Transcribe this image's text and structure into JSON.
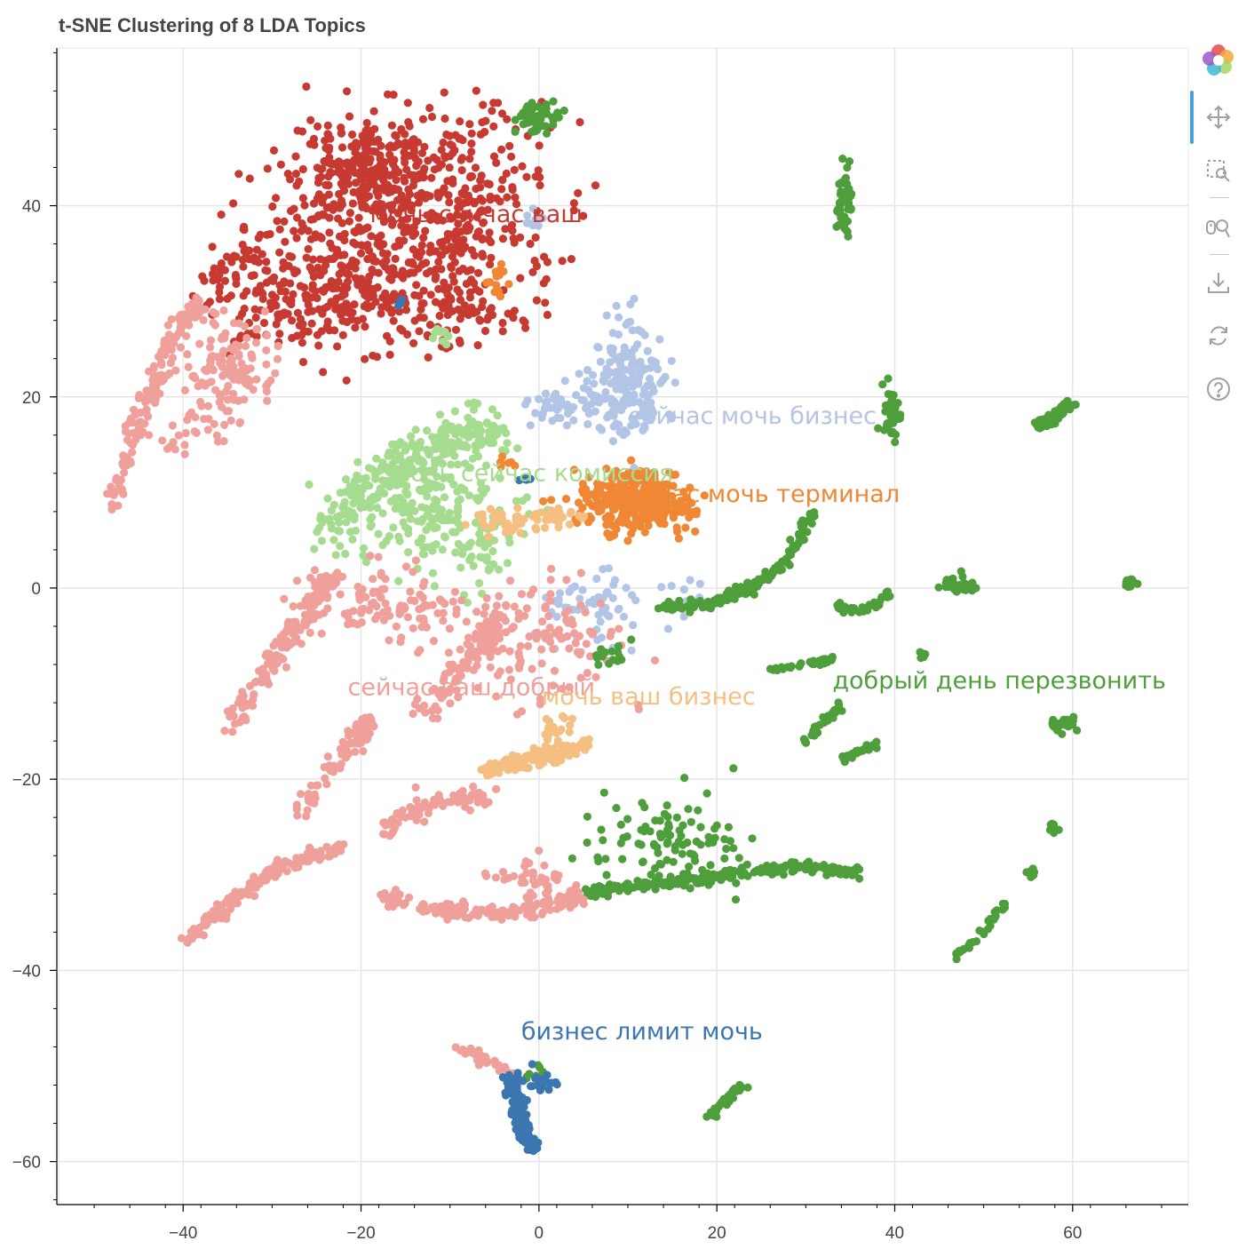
{
  "title": "t-SNE Clustering of 8 LDA Topics",
  "toolbar": {
    "logo": "bokeh-logo-icon",
    "tools": [
      "pan-icon",
      "box-zoom-icon",
      "wheel-zoom-icon",
      "save-icon",
      "reset-icon",
      "help-icon"
    ]
  },
  "chart_data": {
    "type": "scatter",
    "title": "t-SNE Clustering of 8 LDA Topics",
    "xlabel": "",
    "ylabel": "",
    "xlim": [
      -54,
      73
    ],
    "ylim": [
      -64.5,
      56.5
    ],
    "x_ticks": [
      -40,
      -20,
      0,
      20,
      40,
      60
    ],
    "x_tick_labels": [
      "−40",
      "−20",
      "0",
      "20",
      "40",
      "60"
    ],
    "y_ticks": [
      40,
      20,
      0,
      -20,
      -40,
      -60
    ],
    "y_tick_labels": [
      "40",
      "20",
      "0",
      "−20",
      "−40",
      "−60"
    ],
    "grid": true,
    "colors": {
      "topic_red": "#c73a32",
      "topic_pink": "#f0a09b",
      "topic_lightblue": "#b2c5e6",
      "topic_lightgreen": "#a6dc8f",
      "topic_orange": "#ef8734",
      "topic_peach": "#f5bf82",
      "topic_green": "#4f9e3c",
      "topic_blue": "#3b76b1"
    },
    "topics": [
      {
        "label": "мочь сейчас ваш",
        "color": "#c73a32",
        "label_x": -19,
        "label_y": 38.3
      },
      {
        "label": "сейчас мочь бизнес",
        "color": "#b2c5e6",
        "label_x": 10,
        "label_y": 17.2
      },
      {
        "label": "мочь сейчас комиссия",
        "color": "#a6dc8f",
        "label_x": -16.5,
        "label_y": 11.2
      },
      {
        "label": "сейчас мочь терминал",
        "color": "#ef8734",
        "label_x": 8.5,
        "label_y": 9.0
      },
      {
        "label": "сейчас ваш добрый",
        "color": "#f0a09b",
        "label_x": -21.5,
        "label_y": -11.2
      },
      {
        "label": "мочь ваш бизнес",
        "color": "#f5bf82",
        "label_x": 0.3,
        "label_y": -12.2
      },
      {
        "label": "добрый день перезвонить",
        "color": "#4f9e3c",
        "label_x": 33,
        "label_y": -10.5
      },
      {
        "label": "бизнес лимит мочь",
        "color": "#3b76b1",
        "label_x": -2,
        "label_y": -47.2
      }
    ],
    "clusters": [
      {
        "topic": 0,
        "kind": "band",
        "pts": [
          [
            -38.5,
            30.5
          ],
          [
            -32,
            35
          ],
          [
            -24,
            40
          ],
          [
            -16,
            44.5
          ],
          [
            -9,
            47
          ],
          [
            -3,
            49.5
          ]
        ],
        "w": 2.5,
        "n": 130,
        "seed": 11
      },
      {
        "topic": 0,
        "kind": "blob",
        "cx": -14,
        "cy": 38,
        "sx": 7.5,
        "sy": 5.5,
        "n": 520,
        "seed": 12
      },
      {
        "topic": 0,
        "kind": "blob",
        "cx": -27,
        "cy": 31,
        "sx": 5,
        "sy": 3,
        "n": 150,
        "seed": 13
      },
      {
        "topic": 0,
        "kind": "blob",
        "cx": -16,
        "cy": 30,
        "sx": 6,
        "sy": 2.5,
        "n": 120,
        "seed": 14
      },
      {
        "topic": 0,
        "kind": "blob",
        "cx": -20,
        "cy": 45,
        "sx": 3.5,
        "sy": 1.8,
        "n": 120,
        "seed": 15
      },
      {
        "topic": 6,
        "kind": "blob",
        "cx": 0,
        "cy": 49.3,
        "sx": 1.3,
        "sy": 0.8,
        "n": 45,
        "seed": 16
      },
      {
        "topic": 1,
        "kind": "blob",
        "cx": -0.5,
        "cy": 38.3,
        "sx": 0.5,
        "sy": 0.5,
        "n": 10,
        "seed": 17
      },
      {
        "topic": 3,
        "kind": "blob",
        "cx": -4.5,
        "cy": 31.5,
        "sx": 1.0,
        "sy": 1.2,
        "n": 14,
        "seed": 18
      },
      {
        "topic": 7,
        "kind": "blob",
        "cx": -15.5,
        "cy": 30,
        "sx": 0.3,
        "sy": 0.3,
        "n": 6,
        "seed": 19
      },
      {
        "topic": 2,
        "kind": "blob",
        "cx": -11,
        "cy": 26.5,
        "sx": 0.8,
        "sy": 0.5,
        "n": 10,
        "seed": 20
      },
      {
        "topic": 4,
        "kind": "band",
        "pts": [
          [
            -48,
            9
          ],
          [
            -46,
            15
          ],
          [
            -43,
            22
          ],
          [
            -40,
            28
          ],
          [
            -38,
            30
          ]
        ],
        "w": 0.9,
        "n": 160,
        "seed": 21
      },
      {
        "topic": 4,
        "kind": "blob",
        "cx": -35,
        "cy": 23,
        "sx": 2.5,
        "sy": 2.5,
        "n": 130,
        "seed": 22
      },
      {
        "topic": 4,
        "kind": "blob",
        "cx": -39,
        "cy": 16,
        "sx": 2,
        "sy": 1.5,
        "n": 20,
        "seed": 23
      },
      {
        "topic": 1,
        "kind": "blob",
        "cx": 10,
        "cy": 21,
        "sx": 2.2,
        "sy": 3.5,
        "n": 180,
        "seed": 24
      },
      {
        "topic": 1,
        "kind": "blob",
        "cx": 3,
        "cy": 19,
        "sx": 2,
        "sy": 0.9,
        "n": 50,
        "seed": 25
      },
      {
        "topic": 1,
        "kind": "blob",
        "cx": 6.5,
        "cy": -2,
        "sx": 3,
        "sy": 2,
        "n": 55,
        "seed": 26
      },
      {
        "topic": 1,
        "kind": "blob",
        "cx": 17.5,
        "cy": -1.5,
        "sx": 1.5,
        "sy": 1.5,
        "n": 12,
        "seed": 27
      },
      {
        "topic": 2,
        "kind": "band",
        "pts": [
          [
            -24,
            5
          ],
          [
            -20,
            10
          ],
          [
            -14,
            14
          ],
          [
            -8,
            16
          ],
          [
            -5,
            17
          ]
        ],
        "w": 2.0,
        "n": 230,
        "seed": 28
      },
      {
        "topic": 2,
        "kind": "blob",
        "cx": -12,
        "cy": 8,
        "sx": 5,
        "sy": 3,
        "n": 220,
        "seed": 29
      },
      {
        "topic": 2,
        "kind": "blob",
        "cx": -6,
        "cy": 3,
        "sx": 1.2,
        "sy": 1.5,
        "n": 20,
        "seed": 30
      },
      {
        "topic": 3,
        "kind": "blob",
        "cx": 11,
        "cy": 9,
        "sx": 3,
        "sy": 1.6,
        "n": 320,
        "seed": 31
      },
      {
        "topic": 3,
        "kind": "blob",
        "cx": -6,
        "cy": -5,
        "sx": 0.8,
        "sy": 0.6,
        "n": 20,
        "seed": 32
      },
      {
        "topic": 3,
        "kind": "blob",
        "cx": -4,
        "cy": 13,
        "sx": 0.6,
        "sy": 0.4,
        "n": 8,
        "seed": 33
      },
      {
        "topic": 5,
        "kind": "blob",
        "cx": -3,
        "cy": 7,
        "sx": 2.5,
        "sy": 0.6,
        "n": 45,
        "seed": 34
      },
      {
        "topic": 5,
        "kind": "blob",
        "cx": 2.5,
        "cy": 7.5,
        "sx": 1.8,
        "sy": 0.5,
        "n": 20,
        "seed": 35
      },
      {
        "topic": 5,
        "kind": "band",
        "pts": [
          [
            -6,
            -19
          ],
          [
            -2,
            -18
          ],
          [
            2,
            -17.5
          ],
          [
            5,
            -16.5
          ]
        ],
        "w": 0.7,
        "n": 140,
        "seed": 36
      },
      {
        "topic": 5,
        "kind": "blob",
        "cx": 2,
        "cy": -15,
        "sx": 1,
        "sy": 1,
        "n": 20,
        "seed": 37
      },
      {
        "topic": 4,
        "kind": "band",
        "pts": [
          [
            -34.5,
            -14
          ],
          [
            -31,
            -9
          ],
          [
            -28,
            -5
          ],
          [
            -25,
            -1
          ],
          [
            -23,
            1.5
          ]
        ],
        "w": 1.0,
        "n": 150,
        "seed": 38
      },
      {
        "topic": 4,
        "kind": "blob",
        "cx": -17,
        "cy": -2,
        "sx": 5,
        "sy": 2,
        "n": 110,
        "seed": 39
      },
      {
        "topic": 4,
        "kind": "band",
        "pts": [
          [
            -13,
            -13
          ],
          [
            -10,
            -10
          ],
          [
            -7,
            -6
          ],
          [
            -4,
            -3
          ]
        ],
        "w": 1.2,
        "n": 100,
        "seed": 40
      },
      {
        "topic": 4,
        "kind": "blob",
        "cx": 0,
        "cy": -5,
        "sx": 5,
        "sy": 3,
        "n": 120,
        "seed": 41
      },
      {
        "topic": 4,
        "kind": "band",
        "pts": [
          [
            -27,
            -24
          ],
          [
            -24,
            -20
          ],
          [
            -21,
            -16
          ],
          [
            -19,
            -14
          ]
        ],
        "w": 0.9,
        "n": 80,
        "seed": 42
      },
      {
        "topic": 4,
        "kind": "band",
        "pts": [
          [
            -18,
            -26
          ],
          [
            -14,
            -23
          ],
          [
            -10,
            -22
          ],
          [
            -6,
            -22
          ]
        ],
        "w": 1.0,
        "n": 80,
        "seed": 43
      },
      {
        "topic": 4,
        "kind": "band",
        "pts": [
          [
            -40,
            -37
          ],
          [
            -36,
            -34
          ],
          [
            -32,
            -31
          ],
          [
            -29,
            -29
          ],
          [
            -22,
            -27
          ]
        ],
        "w": 0.6,
        "n": 150,
        "seed": 44
      },
      {
        "topic": 4,
        "kind": "band",
        "pts": [
          [
            -18,
            -32
          ],
          [
            -12,
            -33.5
          ],
          [
            -6,
            -34
          ],
          [
            0,
            -33.5
          ],
          [
            5,
            -32
          ]
        ],
        "w": 0.7,
        "n": 150,
        "seed": 45
      },
      {
        "topic": 4,
        "kind": "blob",
        "cx": -1,
        "cy": -30.5,
        "sx": 2.5,
        "sy": 1.2,
        "n": 40,
        "seed": 46
      },
      {
        "topic": 6,
        "kind": "band",
        "pts": [
          [
            5,
            -32
          ],
          [
            12,
            -31
          ],
          [
            18,
            -30.5
          ],
          [
            25,
            -29.5
          ],
          [
            30,
            -29
          ],
          [
            36,
            -30
          ]
        ],
        "w": 0.5,
        "n": 200,
        "seed": 47
      },
      {
        "topic": 6,
        "kind": "blob",
        "cx": 14,
        "cy": -26,
        "sx": 5,
        "sy": 2.5,
        "n": 100,
        "seed": 48
      },
      {
        "topic": 6,
        "kind": "band",
        "pts": [
          [
            14,
            -2
          ],
          [
            20,
            -1.5
          ],
          [
            24,
            0
          ],
          [
            28,
            3
          ],
          [
            31,
            8.5
          ]
        ],
        "w": 0.5,
        "n": 160,
        "seed": 49
      },
      {
        "topic": 6,
        "kind": "band",
        "pts": [
          [
            33,
            -2
          ],
          [
            36,
            -2.5
          ],
          [
            38,
            -1.5
          ],
          [
            40,
            0
          ]
        ],
        "w": 0.3,
        "n": 40,
        "seed": 50
      },
      {
        "topic": 6,
        "kind": "band",
        "pts": [
          [
            26,
            -8.5
          ],
          [
            30,
            -8
          ],
          [
            33,
            -7.5
          ]
        ],
        "w": 0.3,
        "n": 35,
        "seed": 51
      },
      {
        "topic": 6,
        "kind": "band",
        "pts": [
          [
            30,
            -16
          ],
          [
            32,
            -14
          ],
          [
            34,
            -12.5
          ]
        ],
        "w": 0.4,
        "n": 30,
        "seed": 52
      },
      {
        "topic": 6,
        "kind": "band",
        "pts": [
          [
            34,
            -18
          ],
          [
            36,
            -17
          ],
          [
            39,
            -16
          ]
        ],
        "w": 0.3,
        "n": 25,
        "seed": 53
      },
      {
        "topic": 6,
        "kind": "band",
        "pts": [
          [
            47,
            -38.5
          ],
          [
            50,
            -36
          ],
          [
            53,
            -32
          ]
        ],
        "w": 0.3,
        "n": 30,
        "seed": 54
      },
      {
        "topic": 6,
        "kind": "band",
        "pts": [
          [
            56,
            17
          ],
          [
            58,
            18
          ],
          [
            60,
            19.5
          ]
        ],
        "w": 0.5,
        "n": 60,
        "seed": 55
      },
      {
        "topic": 6,
        "kind": "band",
        "pts": [
          [
            19.5,
            -55
          ],
          [
            21,
            -53.5
          ],
          [
            23,
            -52
          ]
        ],
        "w": 0.4,
        "n": 40,
        "seed": 56
      },
      {
        "topic": 6,
        "kind": "blob",
        "cx": 34.3,
        "cy": 40.5,
        "sx": 0.5,
        "sy": 2,
        "n": 55,
        "seed": 57
      },
      {
        "topic": 6,
        "kind": "blob",
        "cx": 39.5,
        "cy": 18.5,
        "sx": 0.5,
        "sy": 1.4,
        "n": 40,
        "seed": 58
      },
      {
        "topic": 6,
        "kind": "blob",
        "cx": 47,
        "cy": 0.3,
        "sx": 1.2,
        "sy": 0.4,
        "n": 40,
        "seed": 59
      },
      {
        "topic": 6,
        "kind": "blob",
        "cx": 59,
        "cy": -14.3,
        "sx": 0.7,
        "sy": 0.4,
        "n": 25,
        "seed": 60
      },
      {
        "topic": 6,
        "kind": "blob",
        "cx": 66.5,
        "cy": 0.5,
        "sx": 0.3,
        "sy": 0.3,
        "n": 12,
        "seed": 61
      },
      {
        "topic": 6,
        "kind": "blob",
        "cx": 57.8,
        "cy": -25.2,
        "sx": 0.2,
        "sy": 0.2,
        "n": 8,
        "seed": 62
      },
      {
        "topic": 6,
        "kind": "blob",
        "cx": 55.3,
        "cy": -29.7,
        "sx": 0.2,
        "sy": 0.2,
        "n": 8,
        "seed": 63
      },
      {
        "topic": 6,
        "kind": "blob",
        "cx": 43,
        "cy": -7,
        "sx": 0.2,
        "sy": 0.2,
        "n": 5,
        "seed": 64
      },
      {
        "topic": 6,
        "kind": "blob",
        "cx": 8,
        "cy": -7,
        "sx": 1,
        "sy": 1,
        "n": 15,
        "seed": 65
      },
      {
        "topic": 6,
        "kind": "blob",
        "cx": 0,
        "cy": -51,
        "sx": 1,
        "sy": 0.5,
        "n": 8,
        "seed": 66
      },
      {
        "topic": 4,
        "kind": "band",
        "pts": [
          [
            -9,
            -48
          ],
          [
            -6,
            -49.5
          ],
          [
            -3,
            -51
          ]
        ],
        "w": 0.6,
        "n": 40,
        "seed": 67
      },
      {
        "topic": 7,
        "kind": "band",
        "pts": [
          [
            -3.5,
            -51
          ],
          [
            -2.5,
            -53.5
          ],
          [
            -2,
            -56
          ],
          [
            -1,
            -58.5
          ]
        ],
        "w": 0.7,
        "n": 140,
        "seed": 68
      },
      {
        "topic": 7,
        "kind": "blob",
        "cx": 0,
        "cy": -51.5,
        "sx": 1,
        "sy": 0.8,
        "n": 20,
        "seed": 69
      },
      {
        "topic": 7,
        "kind": "blob",
        "cx": -1.5,
        "cy": 11.5,
        "sx": 0.5,
        "sy": 0.3,
        "n": 5,
        "seed": 70
      }
    ]
  }
}
